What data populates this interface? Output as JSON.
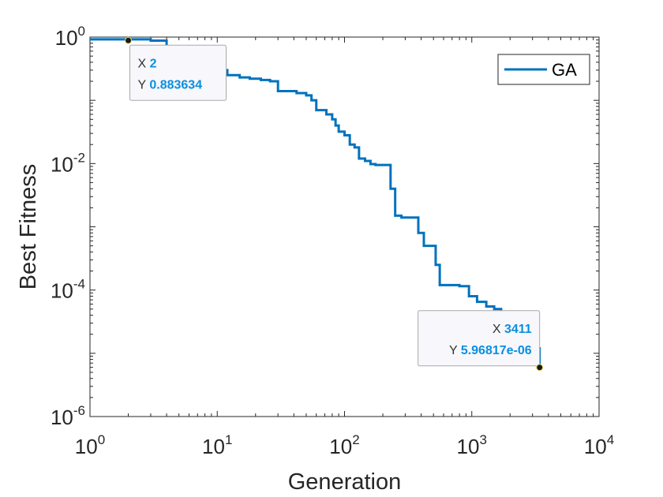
{
  "chart_data": {
    "type": "line",
    "x_scale": "log",
    "y_scale": "log",
    "xlabel": "Generation",
    "ylabel": "Best Fitness",
    "xlim": [
      1,
      10000
    ],
    "ylim": [
      1e-06,
      1
    ],
    "x_ticks": [
      {
        "base": "10",
        "exp": "0",
        "value": 1
      },
      {
        "base": "10",
        "exp": "1",
        "value": 10
      },
      {
        "base": "10",
        "exp": "2",
        "value": 100
      },
      {
        "base": "10",
        "exp": "3",
        "value": 1000
      },
      {
        "base": "10",
        "exp": "4",
        "value": 10000
      }
    ],
    "y_ticks": [
      {
        "base": "10",
        "exp": "0",
        "value": 1
      },
      {
        "base": "10",
        "exp": "-2",
        "value": 0.01
      },
      {
        "base": "10",
        "exp": "-4",
        "value": 0.0001
      },
      {
        "base": "10",
        "exp": "-6",
        "value": 1e-06
      }
    ],
    "grid": false,
    "legend": {
      "position": "top-right",
      "entries": [
        "GA"
      ]
    },
    "series": [
      {
        "name": "GA",
        "color": "#0072BD",
        "x": [
          1,
          3,
          4,
          5,
          6,
          8,
          10,
          12,
          15,
          18,
          22,
          26,
          30,
          35,
          42,
          50,
          55,
          60,
          66,
          72,
          80,
          85,
          90,
          100,
          110,
          120,
          130,
          145,
          160,
          175,
          200,
          230,
          250,
          280,
          330,
          380,
          420,
          480,
          520,
          560,
          650,
          800,
          950,
          1100,
          1300,
          1500,
          1700,
          1900,
          2200,
          2600,
          3000,
          3200,
          3411
        ],
        "y": [
          0.92,
          0.88,
          0.7,
          0.55,
          0.45,
          0.35,
          0.3,
          0.25,
          0.23,
          0.22,
          0.21,
          0.2,
          0.14,
          0.14,
          0.13,
          0.12,
          0.1,
          0.07,
          0.07,
          0.06,
          0.05,
          0.04,
          0.032,
          0.028,
          0.02,
          0.018,
          0.012,
          0.011,
          0.0098,
          0.0095,
          0.0095,
          0.004,
          0.0015,
          0.0014,
          0.0014,
          0.0008,
          0.0005,
          0.0005,
          0.00025,
          0.00012,
          0.00012,
          0.000115,
          8e-05,
          6.5e-05,
          5.5e-05,
          5e-05,
          4.5e-05,
          3.5e-05,
          3e-05,
          2e-05,
          1.5e-05,
          1.2e-05,
          5.9682e-06
        ]
      }
    ],
    "datatips": [
      {
        "x_key": "X",
        "x_value": "2",
        "y_key": "Y",
        "y_value": "0.883634",
        "point_x": 2,
        "point_y": 0.883634,
        "anchor": "right"
      },
      {
        "x_key": "X",
        "x_value": "3411",
        "y_key": "Y",
        "y_value": "5.96817e-06",
        "point_x": 3411,
        "point_y": 5.96817e-06,
        "anchor": "left"
      }
    ]
  }
}
